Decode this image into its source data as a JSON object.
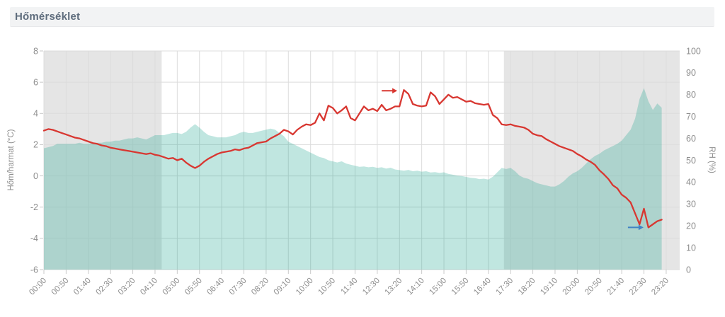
{
  "header": {
    "title": "Hőmérséklet"
  },
  "chart_data": {
    "type": "line+area",
    "title": "Hőmérséklet",
    "x_axis": {
      "tick_labels": [
        "00:00",
        "00:50",
        "01:40",
        "02:30",
        "03:20",
        "04:10",
        "05:00",
        "05:50",
        "06:40",
        "07:30",
        "08:20",
        "09:10",
        "10:00",
        "10:50",
        "11:40",
        "12:30",
        "13:20",
        "14:10",
        "15:00",
        "15:50",
        "16:40",
        "17:30",
        "18:20",
        "19:10",
        "20:00",
        "20:50",
        "21:40",
        "22:30",
        "23:20"
      ],
      "tick_step_min": 50,
      "range_min": [
        0,
        1400
      ]
    },
    "y_left": {
      "label": "Hőm/harmat (°C)",
      "ticks": [
        8,
        6,
        4,
        2,
        0,
        -2,
        -4,
        -6
      ],
      "range": [
        -6,
        8
      ]
    },
    "y_right": {
      "label": "RH (%)",
      "ticks": [
        100,
        90,
        80,
        70,
        60,
        50,
        40,
        30,
        20,
        10,
        0
      ],
      "range": [
        0,
        100
      ]
    },
    "grid": true,
    "night_bands": [
      {
        "start_min": 0,
        "end_min": 265
      },
      {
        "start_min": 1035,
        "end_min": null
      }
    ],
    "colors": {
      "temp_line": "#d83731",
      "rh_area": "rgba(21,164,141,0.27)",
      "night_band": "#e5e5e5",
      "gridline": "#dcdcdc",
      "tick": "#c9c9c9",
      "tick_text": "#8e8e8e",
      "max_arrow": "#d83731",
      "min_arrow": "#4183c4"
    },
    "series": [
      {
        "name": "Hőmérséklet (°C)",
        "axis": "left",
        "style": "line",
        "start": "00:00",
        "step_min": 10,
        "values": [
          2.9,
          3.0,
          2.95,
          2.85,
          2.75,
          2.65,
          2.55,
          2.45,
          2.4,
          2.3,
          2.2,
          2.1,
          2.05,
          1.95,
          1.9,
          1.8,
          1.75,
          1.7,
          1.65,
          1.6,
          1.55,
          1.5,
          1.45,
          1.4,
          1.45,
          1.35,
          1.3,
          1.2,
          1.1,
          1.15,
          1.0,
          1.1,
          0.85,
          0.65,
          0.5,
          0.65,
          0.9,
          1.1,
          1.25,
          1.4,
          1.5,
          1.55,
          1.6,
          1.7,
          1.65,
          1.75,
          1.8,
          1.95,
          2.1,
          2.15,
          2.2,
          2.4,
          2.55,
          2.7,
          2.95,
          2.85,
          2.65,
          2.95,
          3.15,
          3.3,
          3.25,
          3.4,
          4.0,
          3.55,
          4.5,
          4.35,
          4.0,
          4.2,
          4.45,
          3.7,
          3.55,
          4.0,
          4.45,
          4.2,
          4.3,
          4.15,
          4.55,
          4.2,
          4.3,
          4.45,
          4.45,
          5.5,
          5.25,
          4.6,
          4.5,
          4.45,
          4.5,
          5.35,
          5.1,
          4.6,
          4.9,
          5.2,
          5.0,
          5.05,
          4.9,
          4.75,
          4.8,
          4.65,
          4.6,
          4.55,
          4.6,
          3.9,
          3.7,
          3.3,
          3.25,
          3.3,
          3.2,
          3.15,
          3.1,
          2.95,
          2.7,
          2.6,
          2.55,
          2.35,
          2.2,
          2.05,
          1.9,
          1.8,
          1.7,
          1.6,
          1.4,
          1.25,
          1.05,
          0.9,
          0.7,
          0.35,
          0.1,
          -0.2,
          -0.6,
          -0.8,
          -1.2,
          -1.4,
          -1.7,
          -2.4,
          -3.1,
          -2.1,
          -3.3,
          -3.1,
          -2.9,
          -2.8
        ]
      },
      {
        "name": "RH (%)",
        "axis": "right",
        "style": "area",
        "start": "00:00",
        "step_min": 10,
        "values": [
          55.5,
          56,
          56.5,
          57.5,
          57.5,
          57.5,
          57.5,
          57.5,
          58,
          57.5,
          57.5,
          58,
          58,
          58,
          58.5,
          58.5,
          59,
          59,
          59.5,
          60,
          60,
          60.5,
          60,
          59.5,
          60.5,
          61.5,
          61.5,
          61.5,
          62,
          62.5,
          62.5,
          62,
          63,
          65,
          66.5,
          65,
          63,
          61.5,
          61,
          60.5,
          60.5,
          60.5,
          61,
          61.5,
          62.5,
          63,
          62.5,
          62.5,
          63,
          63.5,
          64,
          64.5,
          64,
          62.5,
          61,
          58.5,
          57.5,
          56.5,
          55.5,
          54.5,
          53.5,
          52.5,
          51.5,
          51,
          50,
          49.5,
          49,
          49.5,
          48.5,
          48,
          47.5,
          47,
          47.2,
          46.8,
          47,
          46.5,
          46.8,
          46.2,
          46.6,
          45.8,
          45.5,
          45.2,
          45.6,
          45,
          45.2,
          44.8,
          45,
          44.4,
          44.6,
          44.2,
          44.5,
          43.8,
          43.4,
          43,
          42.8,
          42.4,
          42,
          41.8,
          41.4,
          41.6,
          41.2,
          42.5,
          44.5,
          46.5,
          46,
          46.5,
          45,
          43,
          42,
          41.5,
          40.5,
          39.5,
          39,
          38.5,
          38,
          38,
          39,
          40.5,
          42.5,
          44,
          45,
          46.5,
          48.5,
          50.5,
          52,
          53,
          54.5,
          55.5,
          56.5,
          57.5,
          59,
          61.5,
          64,
          69,
          78,
          83,
          77,
          73,
          76,
          74
        ]
      }
    ],
    "annotations": [
      {
        "name": "max-temp-arrow",
        "time_min": 795,
        "value": 5.45,
        "length": 22,
        "dir": "right",
        "color_key": "max_arrow"
      },
      {
        "name": "min-temp-arrow",
        "time_min": 1349,
        "value": -3.3,
        "length": 22,
        "dir": "right",
        "color_key": "min_arrow"
      }
    ]
  }
}
